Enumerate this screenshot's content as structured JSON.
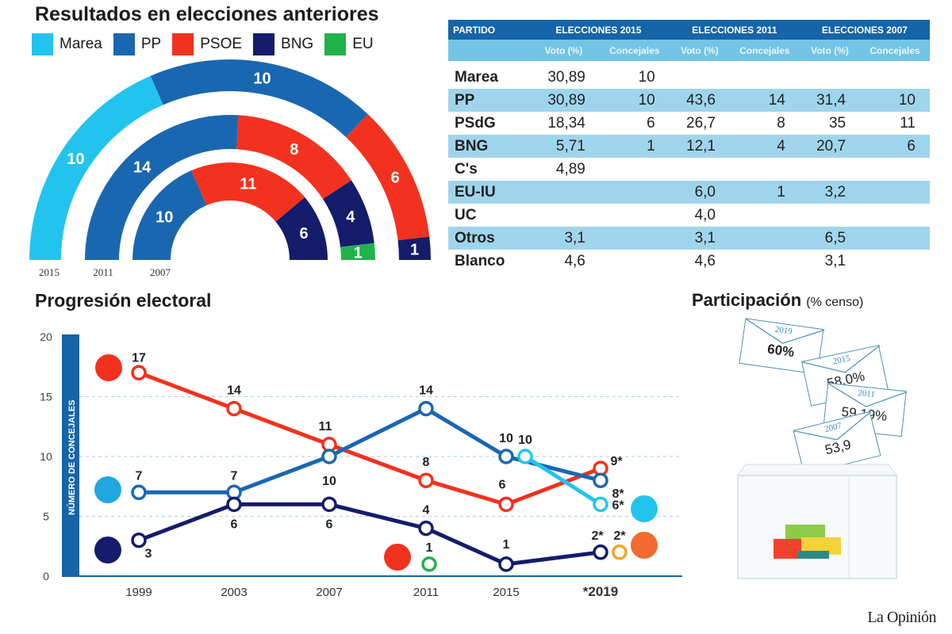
{
  "colors": {
    "Marea": "#22c4ee",
    "PP": "#1a67b1",
    "PSOE": "#f2321e",
    "BNG": "#141c6b",
    "EU": "#1fb34a",
    "other": "#f5a623"
  },
  "results": {
    "title": "Resultados en elecciones anteriores",
    "legend": [
      {
        "label": "Marea",
        "color": "#22c4ee"
      },
      {
        "label": "PP",
        "color": "#1a67b1"
      },
      {
        "label": "PSOE",
        "color": "#f2321e"
      },
      {
        "label": "BNG",
        "color": "#141c6b"
      },
      {
        "label": "EU",
        "color": "#1fb34a"
      }
    ]
  },
  "table": {
    "headers": [
      "PARTIDO",
      "ELECCIONES 2015",
      "ELECCIONES 2011",
      "ELECCIONES 2007"
    ],
    "subheaders": [
      "Voto (%)",
      "Concejales",
      "Voto (%)",
      "Concejales",
      "Voto (%)",
      "Concejales"
    ],
    "rows": [
      [
        "Marea",
        "30,89",
        "10",
        "",
        "",
        "",
        ""
      ],
      [
        "PP",
        "30,89",
        "10",
        "43,6",
        "14",
        "31,4",
        "10"
      ],
      [
        "PSdG",
        "18,34",
        "6",
        "26,7",
        "8",
        "35",
        "11"
      ],
      [
        "BNG",
        "5,71",
        "1",
        "12,1",
        "4",
        "20,7",
        "6"
      ],
      [
        "C's",
        "4,89",
        "",
        "",
        "",
        "",
        ""
      ],
      [
        "EU-IU",
        "",
        "",
        "6,0",
        "1",
        "3,2",
        ""
      ],
      [
        "UC",
        "",
        "",
        "4,0",
        "",
        "",
        ""
      ],
      [
        "Otros",
        "3,1",
        "",
        "3,1",
        "",
        "6,5",
        ""
      ],
      [
        "Blanco",
        "4,6",
        "",
        "4,6",
        "",
        "3,1",
        ""
      ]
    ]
  },
  "progression": {
    "title": "Progresión electoral"
  },
  "participation": {
    "title": "Participación",
    "subtitle": "(% censo)",
    "envelopes": [
      {
        "year": "2019",
        "value": "60%"
      },
      {
        "year": "2015",
        "value": "58,0%"
      },
      {
        "year": "2011",
        "value": "59,19%"
      },
      {
        "year": "2007",
        "value": "53,9"
      }
    ]
  },
  "brand": "La Opinión",
  "chart_data": [
    {
      "type": "pie",
      "variant": "parliament-semicircle",
      "title": "Resultados en elecciones anteriores",
      "rings": [
        {
          "year": "2015",
          "segments": [
            {
              "party": "Marea",
              "value": 10
            },
            {
              "party": "PP",
              "value": 10
            },
            {
              "party": "PSOE",
              "value": 6
            },
            {
              "party": "BNG",
              "value": 1
            }
          ]
        },
        {
          "year": "2011",
          "segments": [
            {
              "party": "PP",
              "value": 14
            },
            {
              "party": "PSOE",
              "value": 8
            },
            {
              "party": "BNG",
              "value": 4
            },
            {
              "party": "EU",
              "value": 1
            }
          ]
        },
        {
          "year": "2007",
          "segments": [
            {
              "party": "PP",
              "value": 10
            },
            {
              "party": "PSOE",
              "value": 11
            },
            {
              "party": "BNG",
              "value": 6
            }
          ]
        }
      ],
      "legend_placement": "top"
    },
    {
      "type": "line",
      "title": "Progresión electoral",
      "ylabel": "NÚMERO DE CONCEJALES",
      "ylim": [
        0,
        20
      ],
      "yticks": [
        "0",
        "5",
        "10",
        "15",
        "20"
      ],
      "categories": [
        "1999",
        "2003",
        "2007",
        "2011",
        "2015",
        "*2019"
      ],
      "grid": "dashed horizontal",
      "series": [
        {
          "party": "PSOE",
          "color": "#f2321e",
          "points": [
            {
              "x": "1999",
              "y": 17,
              "label": "17"
            },
            {
              "x": "2003",
              "y": 14,
              "label": "14"
            },
            {
              "x": "2007",
              "y": 11,
              "label": "11"
            },
            {
              "x": "2011",
              "y": 8,
              "label": "8"
            },
            {
              "x": "2015",
              "y": 6,
              "label": "6"
            },
            {
              "x": "*2019",
              "y": 9,
              "label": "9*"
            }
          ]
        },
        {
          "party": "PP",
          "color": "#1a67b1",
          "points": [
            {
              "x": "1999",
              "y": 7,
              "label": "7"
            },
            {
              "x": "2003",
              "y": 7,
              "label": "7"
            },
            {
              "x": "2007",
              "y": 10,
              "label": "10"
            },
            {
              "x": "2011",
              "y": 14,
              "label": "14"
            },
            {
              "x": "2015",
              "y": 10,
              "label": "10"
            },
            {
              "x": "*2019",
              "y": 8,
              "label": "8*"
            }
          ]
        },
        {
          "party": "BNG",
          "color": "#141c6b",
          "points": [
            {
              "x": "1999",
              "y": 3,
              "label": "3"
            },
            {
              "x": "2003",
              "y": 6,
              "label": "6"
            },
            {
              "x": "2007",
              "y": 6,
              "label": "6"
            },
            {
              "x": "2011",
              "y": 4,
              "label": "4"
            },
            {
              "x": "2015",
              "y": 1,
              "label": "1"
            },
            {
              "x": "*2019",
              "y": 2,
              "label": "2*"
            }
          ]
        },
        {
          "party": "Marea",
          "color": "#22c4ee",
          "points": [
            {
              "x": "2015",
              "y": 10,
              "label": "10"
            },
            {
              "x": "*2019",
              "y": 6,
              "label": "6*"
            }
          ]
        },
        {
          "party": "EU",
          "color": "#1fb34a",
          "points": [
            {
              "x": "2011",
              "y": 1,
              "label": "1"
            }
          ]
        },
        {
          "party": "other",
          "color": "#f5a623",
          "points": [
            {
              "x": "*2019",
              "y": 2,
              "label": "2*"
            }
          ]
        }
      ]
    }
  ]
}
